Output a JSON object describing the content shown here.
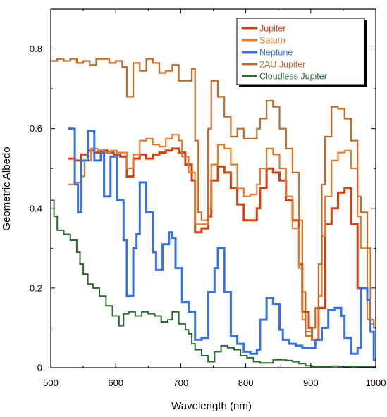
{
  "chart_data": {
    "type": "line",
    "step": true,
    "xlabel": "Wavelength (nm)",
    "ylabel": "Geometric Albedo",
    "xlim": [
      500,
      1000
    ],
    "ylim": [
      0,
      0.9
    ],
    "x_ticks": [
      "500",
      "600",
      "700",
      "800",
      "900",
      "1000"
    ],
    "y_ticks": [
      "0",
      "0.2",
      "0.4",
      "0.6",
      "0.8"
    ],
    "legend_position": "top-right",
    "series": [
      {
        "name": "Jupiter",
        "color": "#d9400f",
        "width": 3,
        "points": [
          [
            527,
            0.525
          ],
          [
            537,
            0.52
          ],
          [
            547,
            0.535
          ],
          [
            557,
            0.545
          ],
          [
            567,
            0.54
          ],
          [
            577,
            0.545
          ],
          [
            587,
            0.54
          ],
          [
            597,
            0.535
          ],
          [
            607,
            0.53
          ],
          [
            617,
            0.48
          ],
          [
            627,
            0.525
          ],
          [
            637,
            0.535
          ],
          [
            647,
            0.525
          ],
          [
            657,
            0.535
          ],
          [
            667,
            0.54
          ],
          [
            677,
            0.545
          ],
          [
            687,
            0.55
          ],
          [
            697,
            0.54
          ],
          [
            707,
            0.51
          ],
          [
            717,
            0.47
          ],
          [
            722,
            0.34
          ],
          [
            732,
            0.35
          ],
          [
            742,
            0.38
          ],
          [
            747,
            0.47
          ],
          [
            757,
            0.505
          ],
          [
            767,
            0.49
          ],
          [
            777,
            0.45
          ],
          [
            787,
            0.41
          ],
          [
            797,
            0.37
          ],
          [
            807,
            0.37
          ],
          [
            817,
            0.4
          ],
          [
            822,
            0.45
          ],
          [
            832,
            0.5
          ],
          [
            842,
            0.49
          ],
          [
            852,
            0.47
          ],
          [
            862,
            0.42
          ],
          [
            872,
            0.37
          ],
          [
            882,
            0.26
          ],
          [
            887,
            0.14
          ],
          [
            897,
            0.1
          ],
          [
            902,
            0.07
          ],
          [
            912,
            0.15
          ],
          [
            922,
            0.36
          ],
          [
            932,
            0.4
          ],
          [
            942,
            0.44
          ],
          [
            952,
            0.45
          ],
          [
            962,
            0.36
          ],
          [
            972,
            0.2
          ],
          [
            977,
            0.2
          ]
        ]
      },
      {
        "name": "Saturn",
        "color": "#ec7a24",
        "width": 2.2,
        "points": [
          [
            527,
            0.46
          ],
          [
            537,
            0.465
          ],
          [
            547,
            0.48
          ],
          [
            552,
            0.52
          ],
          [
            562,
            0.55
          ],
          [
            572,
            0.545
          ],
          [
            582,
            0.54
          ],
          [
            592,
            0.545
          ],
          [
            602,
            0.54
          ],
          [
            612,
            0.54
          ],
          [
            617,
            0.5
          ],
          [
            627,
            0.535
          ],
          [
            637,
            0.57
          ],
          [
            647,
            0.575
          ],
          [
            657,
            0.56
          ],
          [
            667,
            0.555
          ],
          [
            677,
            0.575
          ],
          [
            687,
            0.585
          ],
          [
            697,
            0.57
          ],
          [
            702,
            0.53
          ],
          [
            712,
            0.49
          ],
          [
            722,
            0.36
          ],
          [
            732,
            0.36
          ],
          [
            742,
            0.4
          ],
          [
            747,
            0.51
          ],
          [
            757,
            0.56
          ],
          [
            767,
            0.55
          ],
          [
            777,
            0.51
          ],
          [
            787,
            0.45
          ],
          [
            797,
            0.43
          ],
          [
            807,
            0.435
          ],
          [
            817,
            0.46
          ],
          [
            822,
            0.5
          ],
          [
            832,
            0.55
          ],
          [
            842,
            0.535
          ],
          [
            852,
            0.5
          ],
          [
            862,
            0.43
          ],
          [
            872,
            0.35
          ],
          [
            882,
            0.25
          ],
          [
            887,
            0.12
          ],
          [
            892,
            0.09
          ],
          [
            902,
            0.07
          ],
          [
            912,
            0.18
          ],
          [
            917,
            0.33
          ],
          [
            922,
            0.43
          ],
          [
            932,
            0.52
          ],
          [
            942,
            0.54
          ],
          [
            952,
            0.545
          ],
          [
            962,
            0.5
          ],
          [
            972,
            0.38
          ],
          [
            977,
            0.3
          ],
          [
            987,
            0.12
          ],
          [
            992,
            0.11
          ],
          [
            997,
            0.1
          ]
        ]
      },
      {
        "name": "Neptune",
        "color": "#3572e8",
        "width": 3,
        "points": [
          [
            527,
            0.6
          ],
          [
            537,
            0.46
          ],
          [
            542,
            0.39
          ],
          [
            547,
            0.52
          ],
          [
            557,
            0.595
          ],
          [
            567,
            0.52
          ],
          [
            577,
            0.54
          ],
          [
            582,
            0.43
          ],
          [
            592,
            0.53
          ],
          [
            602,
            0.42
          ],
          [
            612,
            0.32
          ],
          [
            617,
            0.18
          ],
          [
            627,
            0.3
          ],
          [
            632,
            0.335
          ],
          [
            637,
            0.465
          ],
          [
            647,
            0.39
          ],
          [
            657,
            0.29
          ],
          [
            662,
            0.245
          ],
          [
            672,
            0.31
          ],
          [
            682,
            0.34
          ],
          [
            687,
            0.325
          ],
          [
            692,
            0.25
          ],
          [
            702,
            0.165
          ],
          [
            712,
            0.14
          ],
          [
            722,
            0.07
          ],
          [
            732,
            0.075
          ],
          [
            742,
            0.19
          ],
          [
            752,
            0.25
          ],
          [
            757,
            0.3
          ],
          [
            767,
            0.19
          ],
          [
            777,
            0.08
          ],
          [
            787,
            0.06
          ],
          [
            797,
            0.04
          ],
          [
            807,
            0.035
          ],
          [
            817,
            0.045
          ],
          [
            822,
            0.12
          ],
          [
            832,
            0.175
          ],
          [
            842,
            0.16
          ],
          [
            852,
            0.095
          ],
          [
            857,
            0.07
          ],
          [
            867,
            0.06
          ],
          [
            877,
            0.055
          ],
          [
            887,
            0.05
          ],
          [
            897,
            0.05
          ],
          [
            907,
            0.07
          ],
          [
            917,
            0.1
          ],
          [
            927,
            0.145
          ],
          [
            937,
            0.15
          ],
          [
            947,
            0.13
          ],
          [
            952,
            0.075
          ],
          [
            962,
            0.035
          ],
          [
            972,
            0.05
          ],
          [
            977,
            0.2
          ],
          [
            987,
            0.17
          ],
          [
            992,
            0.09
          ],
          [
            997,
            0.02
          ]
        ]
      },
      {
        "name": "2AU Jupiter",
        "color": "#c86a24",
        "width": 2.2,
        "points": [
          [
            500,
            0.77
          ],
          [
            510,
            0.775
          ],
          [
            520,
            0.77
          ],
          [
            530,
            0.775
          ],
          [
            540,
            0.765
          ],
          [
            550,
            0.77
          ],
          [
            560,
            0.76
          ],
          [
            570,
            0.775
          ],
          [
            580,
            0.775
          ],
          [
            590,
            0.765
          ],
          [
            600,
            0.77
          ],
          [
            610,
            0.755
          ],
          [
            617,
            0.68
          ],
          [
            627,
            0.765
          ],
          [
            637,
            0.745
          ],
          [
            647,
            0.775
          ],
          [
            657,
            0.765
          ],
          [
            667,
            0.74
          ],
          [
            677,
            0.745
          ],
          [
            687,
            0.76
          ],
          [
            697,
            0.72
          ],
          [
            707,
            0.72
          ],
          [
            717,
            0.75
          ],
          [
            722,
            0.57
          ],
          [
            727,
            0.39
          ],
          [
            732,
            0.37
          ],
          [
            742,
            0.6
          ],
          [
            747,
            0.72
          ],
          [
            757,
            0.68
          ],
          [
            767,
            0.63
          ],
          [
            777,
            0.58
          ],
          [
            787,
            0.6
          ],
          [
            797,
            0.575
          ],
          [
            807,
            0.575
          ],
          [
            817,
            0.6
          ],
          [
            822,
            0.625
          ],
          [
            832,
            0.67
          ],
          [
            842,
            0.655
          ],
          [
            852,
            0.6
          ],
          [
            862,
            0.55
          ],
          [
            872,
            0.49
          ],
          [
            882,
            0.37
          ],
          [
            887,
            0.19
          ],
          [
            892,
            0.08
          ],
          [
            902,
            0.1
          ],
          [
            907,
            0.15
          ],
          [
            912,
            0.26
          ],
          [
            917,
            0.46
          ],
          [
            922,
            0.58
          ],
          [
            932,
            0.655
          ],
          [
            942,
            0.65
          ],
          [
            952,
            0.625
          ],
          [
            962,
            0.57
          ],
          [
            972,
            0.43
          ],
          [
            977,
            0.39
          ],
          [
            987,
            0.3
          ],
          [
            992,
            0.12
          ],
          [
            997,
            0.1
          ]
        ]
      },
      {
        "name": "Cloudless Jupiter",
        "color": "#2a6b2e",
        "width": 2,
        "points": [
          [
            500,
            0.42
          ],
          [
            505,
            0.38
          ],
          [
            510,
            0.345
          ],
          [
            520,
            0.335
          ],
          [
            530,
            0.32
          ],
          [
            540,
            0.29
          ],
          [
            545,
            0.26
          ],
          [
            550,
            0.235
          ],
          [
            557,
            0.21
          ],
          [
            565,
            0.2
          ],
          [
            575,
            0.18
          ],
          [
            585,
            0.155
          ],
          [
            595,
            0.13
          ],
          [
            605,
            0.105
          ],
          [
            612,
            0.135
          ],
          [
            620,
            0.14
          ],
          [
            630,
            0.13
          ],
          [
            640,
            0.14
          ],
          [
            650,
            0.135
          ],
          [
            660,
            0.13
          ],
          [
            670,
            0.115
          ],
          [
            680,
            0.12
          ],
          [
            687,
            0.14
          ],
          [
            697,
            0.11
          ],
          [
            707,
            0.095
          ],
          [
            712,
            0.085
          ],
          [
            717,
            0.06
          ],
          [
            722,
            0.045
          ],
          [
            732,
            0.03
          ],
          [
            742,
            0.015
          ],
          [
            752,
            0.04
          ],
          [
            762,
            0.055
          ],
          [
            772,
            0.05
          ],
          [
            782,
            0.045
          ],
          [
            792,
            0.03
          ],
          [
            802,
            0.025
          ],
          [
            812,
            0.015
          ],
          [
            822,
            0.012
          ],
          [
            832,
            0.012
          ],
          [
            842,
            0.02
          ],
          [
            852,
            0.02
          ],
          [
            862,
            0.018
          ],
          [
            872,
            0.015
          ],
          [
            882,
            0.01
          ],
          [
            892,
            0.005
          ],
          [
            902,
            0.003
          ],
          [
            912,
            0.003
          ],
          [
            922,
            0.003
          ],
          [
            932,
            0.004
          ],
          [
            942,
            0.003
          ],
          [
            952,
            0.002
          ],
          [
            962,
            0.003
          ],
          [
            972,
            0.002
          ],
          [
            982,
            0.002
          ],
          [
            992,
            0.002
          ],
          [
            1000,
            0.002
          ]
        ]
      }
    ]
  }
}
